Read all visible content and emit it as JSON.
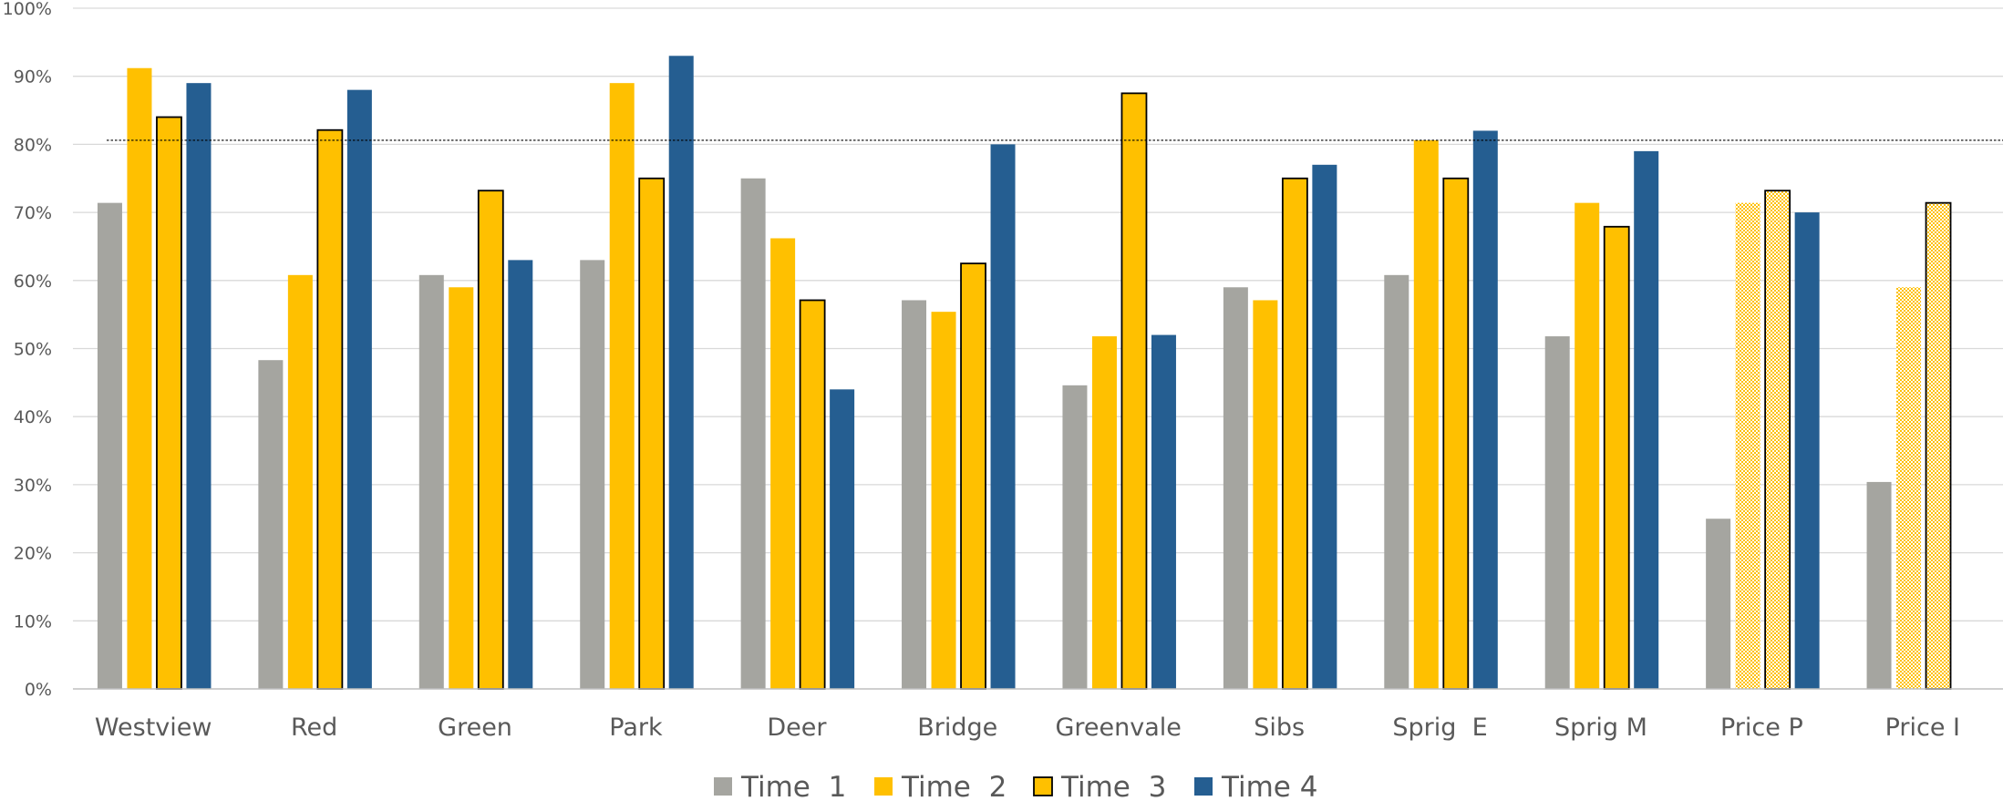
{
  "chart_data": {
    "type": "bar",
    "categories": [
      "Westview",
      "Red",
      "Green",
      "Park",
      "Deer",
      "Bridge",
      "Greenvale",
      "Sibs",
      "Sprig  E",
      "Sprig M",
      "Price P",
      "Price I"
    ],
    "series": [
      {
        "name": "Time  1",
        "color": "#A5A5A0",
        "style": "solid",
        "values": [
          71.4,
          48.3,
          60.8,
          63.0,
          75.0,
          57.1,
          44.6,
          59.0,
          60.8,
          51.8,
          25.0,
          30.4
        ]
      },
      {
        "name": "Time  2",
        "color": "#FFC000",
        "style": "solid",
        "values": [
          91.2,
          60.8,
          59.0,
          89.0,
          66.2,
          55.4,
          51.8,
          57.1,
          80.6,
          71.4,
          71.4,
          59.0
        ]
      },
      {
        "name": "Time  3",
        "color": "#FFC000",
        "style": "outlined",
        "values": [
          84.0,
          82.1,
          73.2,
          75.0,
          57.1,
          62.5,
          87.5,
          75.0,
          75.0,
          67.9,
          73.2,
          71.4
        ]
      },
      {
        "name": "Time 4",
        "color": "#255E91",
        "style": "solid",
        "values": [
          89.0,
          88.0,
          63.0,
          93.0,
          44.0,
          80.0,
          52.0,
          77.0,
          82.0,
          79.0,
          70.0,
          null
        ]
      }
    ],
    "patterned_bars": [
      {
        "series": "Time  2",
        "category": "Price P"
      },
      {
        "series": "Time  3",
        "category": "Price P"
      },
      {
        "series": "Time  2",
        "category": "Price I"
      },
      {
        "series": "Time  3",
        "category": "Price I"
      }
    ],
    "reference_line": {
      "value": 80.6,
      "style": "dotted",
      "color": "#000000"
    },
    "y_ticks": [
      "0%",
      "10%",
      "20%",
      "30%",
      "40%",
      "50%",
      "60%",
      "70%",
      "80%",
      "90%",
      "100%"
    ],
    "ylim": [
      0,
      100
    ],
    "grid": true,
    "legend_position": "bottom",
    "title": "",
    "xlabel": "",
    "ylabel": ""
  }
}
